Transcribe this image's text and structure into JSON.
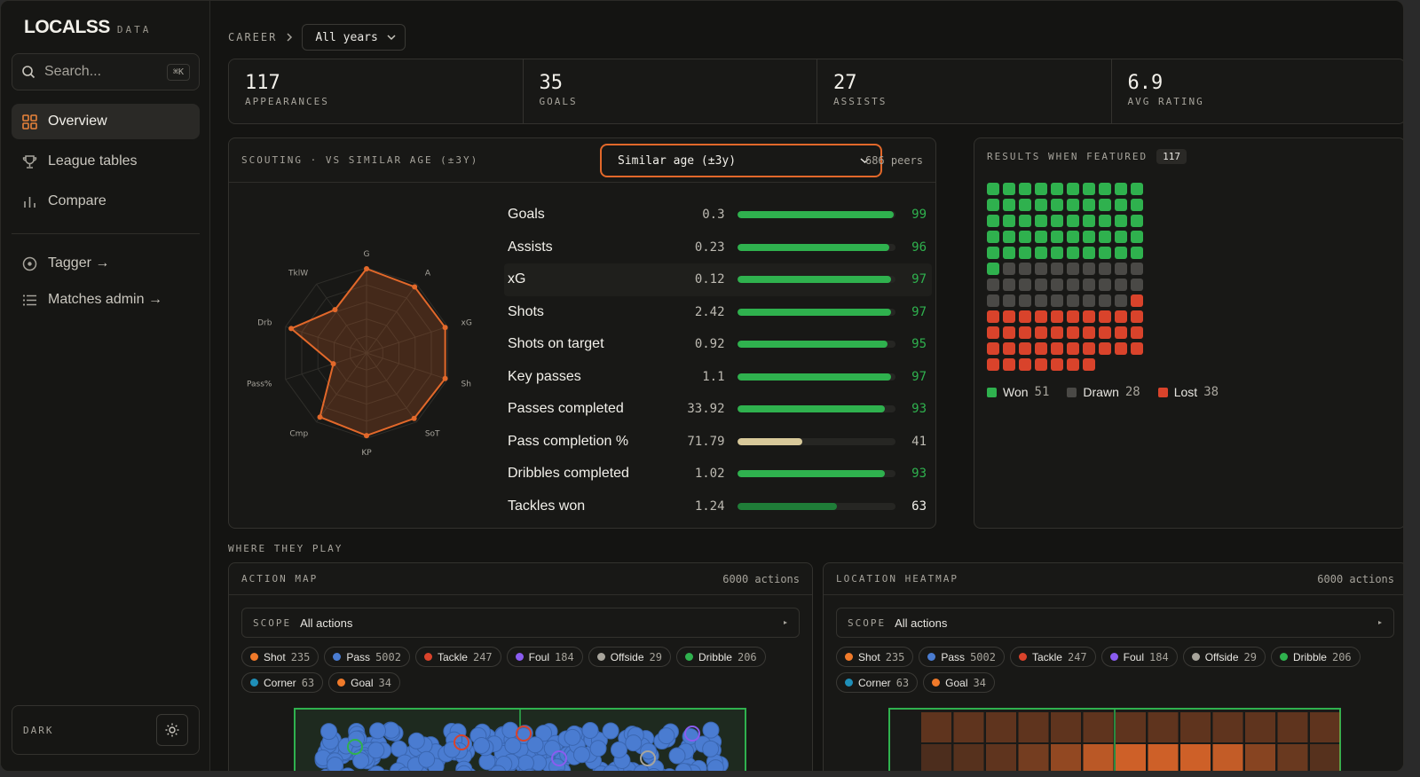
{
  "brand": {
    "name": "LOCALSS",
    "tag": "DATA"
  },
  "search": {
    "placeholder": "Search...",
    "shortcut": "⌘K"
  },
  "nav": [
    {
      "label": "Overview",
      "icon": "grid-icon",
      "active": true
    },
    {
      "label": "League tables",
      "icon": "trophy-icon"
    },
    {
      "label": "Compare",
      "icon": "bar-chart-icon"
    },
    {
      "label": "Tagger →",
      "icon": "target-icon"
    },
    {
      "label": "Matches admin →",
      "icon": "list-icon"
    }
  ],
  "theme": {
    "label": "DARK"
  },
  "breadcrumb": {
    "label": "CAREER",
    "range": "All years"
  },
  "stats": [
    {
      "value": "117",
      "label": "APPEARANCES"
    },
    {
      "value": "35",
      "label": "GOALS"
    },
    {
      "value": "27",
      "label": "ASSISTS"
    },
    {
      "value": "6.9",
      "label": "AVG RATING"
    }
  ],
  "scouting": {
    "title": "SCOUTING · VS SIMILAR AGE (±3Y)",
    "select": "Similar age (±3y)",
    "peers": "686 peers",
    "radar_labels": [
      "G",
      "A",
      "xG",
      "Sh",
      "SoT",
      "KP",
      "Cmp",
      "Pass%",
      "Drb",
      "TklW"
    ],
    "metrics": [
      {
        "name": "Goals",
        "value": "0.3",
        "pct": 99
      },
      {
        "name": "Assists",
        "value": "0.23",
        "pct": 96
      },
      {
        "name": "xG",
        "value": "0.12",
        "pct": 97
      },
      {
        "name": "Shots",
        "value": "2.42",
        "pct": 97
      },
      {
        "name": "Shots on target",
        "value": "0.92",
        "pct": 95
      },
      {
        "name": "Key passes",
        "value": "1.1",
        "pct": 97
      },
      {
        "name": "Passes completed",
        "value": "33.92",
        "pct": 93
      },
      {
        "name": "Pass completion %",
        "value": "71.79",
        "pct": 41
      },
      {
        "name": "Dribbles completed",
        "value": "1.02",
        "pct": 93
      },
      {
        "name": "Tackles won",
        "value": "1.24",
        "pct": 63
      }
    ]
  },
  "results": {
    "title": "RESULTS WHEN FEATURED",
    "count": "117",
    "won": {
      "label": "Won",
      "n": 51
    },
    "drawn": {
      "label": "Drawn",
      "n": 28
    },
    "lost": {
      "label": "Lost",
      "n": 38
    },
    "colors": {
      "won": "#2fb14e",
      "drawn": "#4a4946",
      "lost": "#d9432b"
    }
  },
  "where": {
    "label": "WHERE THEY PLAY"
  },
  "action_map": {
    "title": "ACTION MAP",
    "count": "6000 actions",
    "scope_label": "SCOPE",
    "scope_value": "All actions"
  },
  "heatmap": {
    "title": "LOCATION HEATMAP",
    "count": "6000 actions",
    "scope_label": "SCOPE",
    "scope_value": "All actions"
  },
  "action_types": [
    {
      "label": "Shot",
      "n": "235",
      "color": "#f07a2a"
    },
    {
      "label": "Pass",
      "n": "5002",
      "color": "#4a7cd1"
    },
    {
      "label": "Tackle",
      "n": "247",
      "color": "#d9432b"
    },
    {
      "label": "Foul",
      "n": "184",
      "color": "#8a5cf0"
    },
    {
      "label": "Offside",
      "n": "29",
      "color": "#a8a59c"
    },
    {
      "label": "Dribble",
      "n": "206",
      "color": "#2fb14e"
    },
    {
      "label": "Corner",
      "n": "63",
      "color": "#1f8fb8"
    },
    {
      "label": "Goal",
      "n": "34",
      "color": "#f07a2a"
    }
  ]
}
